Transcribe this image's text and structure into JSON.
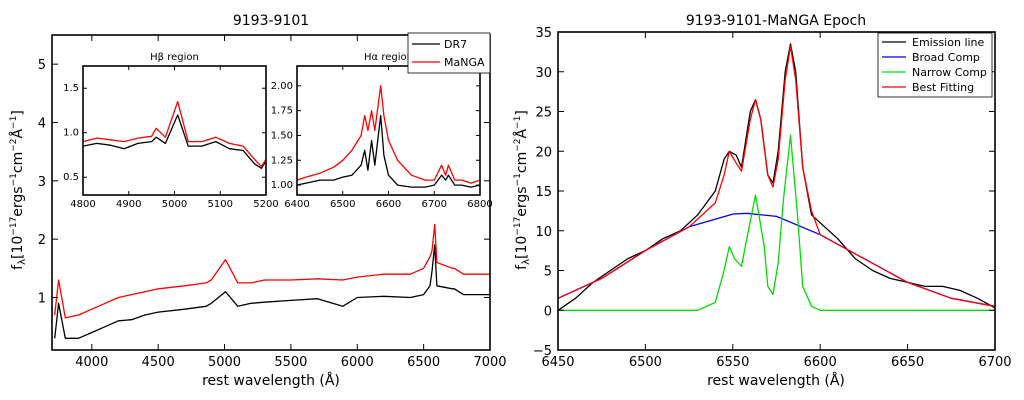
{
  "chart_data": [
    {
      "type": "line",
      "title": "9193-9101",
      "xlabel": "rest wavelength (Å)",
      "ylabel": "f_λ[10^{-17}ergs^{-1}cm^{-2}Å^{-1}]",
      "xlim": [
        3700,
        7000
      ],
      "ylim": [
        0.1,
        5.5
      ],
      "xticks": [
        "4000",
        "4500",
        "5000",
        "5500",
        "6000",
        "6500",
        "7000"
      ],
      "yticks": [
        "1",
        "2",
        "3",
        "4",
        "5"
      ],
      "legend": {
        "placement": "top-right",
        "entries": [
          {
            "name": "DR7",
            "color": "#000000"
          },
          {
            "name": "MaNGA",
            "color": "#ff0000"
          }
        ]
      },
      "series": [
        {
          "name": "DR7",
          "color": "#000000",
          "x": [
            3720,
            3750,
            3800,
            3900,
            4000,
            4100,
            4200,
            4300,
            4400,
            4500,
            4700,
            4861,
            4900,
            5007,
            5100,
            5200,
            5300,
            5500,
            5700,
            5890,
            6000,
            6200,
            6400,
            6500,
            6548,
            6563,
            6583,
            6600,
            6716,
            6731,
            6800,
            7000
          ],
          "y": [
            0.3,
            0.9,
            0.3,
            0.3,
            0.4,
            0.5,
            0.6,
            0.62,
            0.7,
            0.75,
            0.8,
            0.85,
            0.9,
            1.1,
            0.85,
            0.9,
            0.92,
            0.95,
            0.98,
            0.85,
            1.0,
            1.02,
            1.0,
            1.05,
            1.2,
            1.45,
            1.9,
            1.2,
            1.15,
            1.15,
            1.05,
            1.05
          ]
        },
        {
          "name": "MaNGA",
          "color": "#ff0000",
          "x": [
            3720,
            3750,
            3800,
            3900,
            4000,
            4100,
            4200,
            4300,
            4400,
            4500,
            4700,
            4861,
            4900,
            5007,
            5100,
            5200,
            5300,
            5500,
            5700,
            5890,
            6000,
            6200,
            6400,
            6500,
            6548,
            6563,
            6583,
            6600,
            6716,
            6731,
            6800,
            7000
          ],
          "y": [
            0.7,
            1.3,
            0.65,
            0.7,
            0.8,
            0.9,
            1.0,
            1.05,
            1.1,
            1.15,
            1.2,
            1.25,
            1.3,
            1.65,
            1.25,
            1.25,
            1.3,
            1.3,
            1.32,
            1.3,
            1.35,
            1.4,
            1.4,
            1.5,
            1.7,
            1.8,
            2.25,
            1.6,
            1.5,
            1.5,
            1.4,
            1.4
          ]
        }
      ]
    },
    {
      "type": "line",
      "title": "Hβ region",
      "xlim": [
        4800,
        5200
      ],
      "ylim": [
        0.3,
        1.75
      ],
      "xticks": [
        "4800",
        "4900",
        "5000",
        "5100",
        "5200"
      ],
      "yticks": [
        "0.5",
        "1.0",
        "1.5"
      ],
      "series": [
        {
          "name": "DR7",
          "color": "#000000",
          "x": [
            4800,
            4830,
            4860,
            4890,
            4920,
            4950,
            4960,
            4980,
            5007,
            5030,
            5060,
            5090,
            5120,
            5150,
            5175,
            5190,
            5200
          ],
          "y": [
            0.85,
            0.88,
            0.86,
            0.82,
            0.88,
            0.9,
            0.95,
            0.88,
            1.2,
            0.85,
            0.85,
            0.9,
            0.82,
            0.8,
            0.65,
            0.6,
            0.68
          ]
        },
        {
          "name": "MaNGA",
          "color": "#ff0000",
          "x": [
            4800,
            4830,
            4860,
            4890,
            4920,
            4950,
            4960,
            4980,
            5007,
            5030,
            5060,
            5090,
            5120,
            5150,
            5175,
            5190,
            5200
          ],
          "y": [
            0.9,
            0.94,
            0.92,
            0.9,
            0.94,
            0.96,
            1.05,
            0.95,
            1.35,
            0.9,
            0.9,
            0.95,
            0.88,
            0.85,
            0.7,
            0.62,
            0.7
          ]
        }
      ]
    },
    {
      "type": "line",
      "title": "Hα region",
      "xlim": [
        6400,
        6800
      ],
      "ylim": [
        0.9,
        2.2
      ],
      "xticks": [
        "6400",
        "6500",
        "6600",
        "6700",
        "6800"
      ],
      "yticks": [
        "1.00",
        "1.25",
        "1.50",
        "1.75",
        "2.00"
      ],
      "series": [
        {
          "name": "DR7",
          "color": "#000000",
          "x": [
            6400,
            6420,
            6450,
            6480,
            6500,
            6520,
            6540,
            6548,
            6555,
            6563,
            6570,
            6583,
            6590,
            6600,
            6620,
            6650,
            6680,
            6700,
            6716,
            6725,
            6731,
            6745,
            6760,
            6780,
            6800
          ],
          "y": [
            1.0,
            1.02,
            1.05,
            1.05,
            1.08,
            1.1,
            1.2,
            1.35,
            1.15,
            1.45,
            1.2,
            1.7,
            1.3,
            1.1,
            1.0,
            0.98,
            0.98,
            1.0,
            1.1,
            1.05,
            1.1,
            1.0,
            1.0,
            0.98,
            1.0
          ]
        },
        {
          "name": "MaNGA",
          "color": "#ff0000",
          "x": [
            6400,
            6420,
            6450,
            6480,
            6500,
            6520,
            6540,
            6548,
            6555,
            6563,
            6570,
            6583,
            6590,
            6600,
            6620,
            6650,
            6680,
            6700,
            6716,
            6725,
            6731,
            6745,
            6760,
            6780,
            6800
          ],
          "y": [
            1.05,
            1.08,
            1.12,
            1.18,
            1.25,
            1.35,
            1.5,
            1.7,
            1.55,
            1.75,
            1.55,
            2.0,
            1.7,
            1.45,
            1.25,
            1.1,
            1.05,
            1.05,
            1.2,
            1.1,
            1.2,
            1.05,
            1.05,
            1.02,
            1.05
          ]
        }
      ]
    },
    {
      "type": "line",
      "title": "9193-9101-MaNGA Epoch",
      "xlabel": "rest wavelength (Å)",
      "ylabel": "f_λ[10^{-17}ergs^{-1}cm^{-2}Å^{-1}]",
      "xlim": [
        6450,
        6700
      ],
      "ylim": [
        -5,
        35
      ],
      "xticks": [
        "6450",
        "6500",
        "6550",
        "6600",
        "6650",
        "6700"
      ],
      "yticks": [
        "−5",
        "0",
        "5",
        "10",
        "15",
        "20",
        "25",
        "30",
        "35"
      ],
      "legend": {
        "placement": "top-right",
        "entries": [
          {
            "name": "Emission line",
            "color": "#000000"
          },
          {
            "name": "Broad Comp",
            "color": "#0000ff"
          },
          {
            "name": "Narrow Comp",
            "color": "#00dd00"
          },
          {
            "name": "Best Fitting",
            "color": "#ff0000"
          }
        ]
      },
      "series": [
        {
          "name": "Emission line",
          "color": "#000000",
          "x": [
            6450,
            6460,
            6470,
            6480,
            6490,
            6500,
            6510,
            6520,
            6530,
            6540,
            6545,
            6548,
            6552,
            6555,
            6560,
            6563,
            6566,
            6570,
            6573,
            6576,
            6580,
            6583,
            6586,
            6590,
            6595,
            6600,
            6610,
            6620,
            6630,
            6640,
            6650,
            6660,
            6670,
            6680,
            6690,
            6700
          ],
          "y": [
            0,
            1.5,
            3.5,
            5,
            6.5,
            7.5,
            9,
            10,
            12,
            15,
            19,
            20,
            19.5,
            18,
            25,
            26.5,
            24,
            17,
            16,
            20,
            30,
            33.5,
            30,
            18,
            12,
            11,
            9,
            6.5,
            5,
            4,
            3.5,
            3,
            3,
            2.5,
            1.5,
            0.3
          ]
        },
        {
          "name": "Broad Comp",
          "color": "#0000ff",
          "x": [
            6450,
            6475,
            6500,
            6525,
            6550,
            6558,
            6575,
            6600,
            6625,
            6650,
            6675,
            6700
          ],
          "y": [
            1.5,
            4,
            7.5,
            10.5,
            12.1,
            12.2,
            11.8,
            9.5,
            6.5,
            3.5,
            1.5,
            0.5
          ]
        },
        {
          "name": "Narrow Comp",
          "color": "#00dd00",
          "x": [
            6450,
            6530,
            6540,
            6545,
            6548,
            6551,
            6555,
            6558,
            6563,
            6568,
            6570,
            6573,
            6576,
            6579,
            6583,
            6587,
            6590,
            6595,
            6600,
            6700
          ],
          "y": [
            0,
            0,
            1,
            5,
            8,
            6.5,
            5.5,
            9,
            14.5,
            8,
            3,
            2,
            6,
            14,
            22,
            12,
            3,
            0.5,
            0,
            0
          ]
        },
        {
          "name": "Best Fitting",
          "color": "#ff0000",
          "x": [
            6450,
            6475,
            6500,
            6525,
            6540,
            6545,
            6548,
            6552,
            6555,
            6560,
            6563,
            6566,
            6570,
            6573,
            6576,
            6580,
            6583,
            6586,
            6590,
            6595,
            6600,
            6625,
            6650,
            6675,
            6700
          ],
          "y": [
            1.5,
            4,
            7.5,
            10.5,
            13.5,
            17,
            20,
            18.5,
            17.5,
            24,
            26.5,
            24,
            17,
            15.5,
            19,
            29,
            33.2,
            29,
            18,
            12.5,
            9.5,
            6.5,
            3.5,
            1.5,
            0.5
          ]
        }
      ]
    }
  ]
}
